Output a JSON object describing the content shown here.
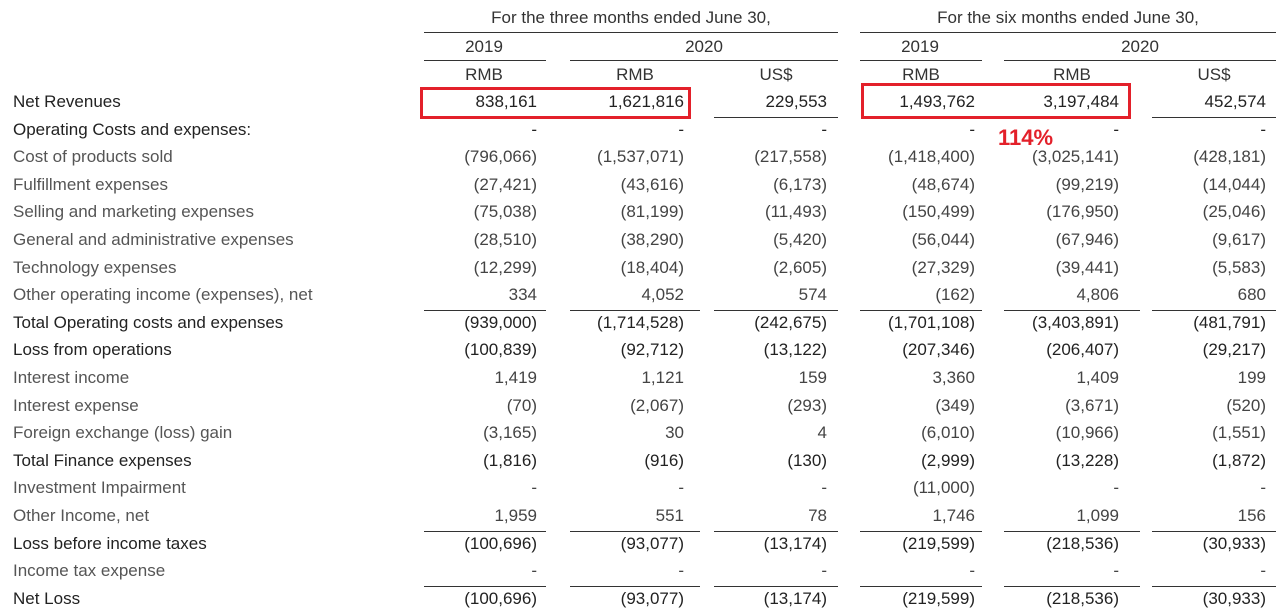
{
  "headers": {
    "three_months": "For the three months ended June 30,",
    "six_months": "For the six months ended June 30,",
    "years": [
      "2019",
      "2020",
      "2019",
      "2020"
    ],
    "currencies": [
      "RMB",
      "RMB",
      "US$",
      "RMB",
      "RMB",
      "US$"
    ]
  },
  "annotation": {
    "growth": "114%"
  },
  "rows": [
    {
      "label": "Net Revenues",
      "bold": true,
      "values": [
        "838,161",
        "1,621,816",
        "229,553",
        "1,493,762",
        "3,197,484",
        "452,574"
      ]
    },
    {
      "label": "Operating Costs and expenses:",
      "bold": true,
      "values": [
        "-",
        "-",
        "-",
        "-",
        "-",
        "-"
      ]
    },
    {
      "label": "Cost of products sold",
      "bold": false,
      "values": [
        "(796,066)",
        "(1,537,071)",
        "(217,558)",
        "(1,418,400)",
        "(3,025,141)",
        "(428,181)"
      ]
    },
    {
      "label": "Fulfillment expenses",
      "bold": false,
      "values": [
        "(27,421)",
        "(43,616)",
        "(6,173)",
        "(48,674)",
        "(99,219)",
        "(14,044)"
      ]
    },
    {
      "label": "Selling and marketing expenses",
      "bold": false,
      "values": [
        "(75,038)",
        "(81,199)",
        "(11,493)",
        "(150,499)",
        "(176,950)",
        "(25,046)"
      ]
    },
    {
      "label": "General and administrative expenses",
      "bold": false,
      "values": [
        "(28,510)",
        "(38,290)",
        "(5,420)",
        "(56,044)",
        "(67,946)",
        "(9,617)"
      ]
    },
    {
      "label": "Technology expenses",
      "bold": false,
      "values": [
        "(12,299)",
        "(18,404)",
        "(2,605)",
        "(27,329)",
        "(39,441)",
        "(5,583)"
      ]
    },
    {
      "label": "Other operating income (expenses), net",
      "bold": false,
      "values": [
        "334",
        "4,052",
        "574",
        "(162)",
        "4,806",
        "680"
      ]
    },
    {
      "label": "Total Operating costs and expenses",
      "bold": true,
      "values": [
        "(939,000)",
        "(1,714,528)",
        "(242,675)",
        "(1,701,108)",
        "(3,403,891)",
        "(481,791)"
      ]
    },
    {
      "label": "Loss from operations",
      "bold": true,
      "values": [
        "(100,839)",
        "(92,712)",
        "(13,122)",
        "(207,346)",
        "(206,407)",
        "(29,217)"
      ]
    },
    {
      "label": "Interest income",
      "bold": false,
      "values": [
        "1,419",
        "1,121",
        "159",
        "3,360",
        "1,409",
        "199"
      ]
    },
    {
      "label": "Interest expense",
      "bold": false,
      "values": [
        "(70)",
        "(2,067)",
        "(293)",
        "(349)",
        "(3,671)",
        "(520)"
      ]
    },
    {
      "label": "Foreign exchange (loss) gain",
      "bold": false,
      "values": [
        "(3,165)",
        "30",
        "4",
        "(6,010)",
        "(10,966)",
        "(1,551)"
      ]
    },
    {
      "label": "Total Finance expenses",
      "bold": true,
      "values": [
        "(1,816)",
        "(916)",
        "(130)",
        "(2,999)",
        "(13,228)",
        "(1,872)"
      ]
    },
    {
      "label": "Investment Impairment",
      "bold": false,
      "values": [
        "-",
        "-",
        "-",
        "(11,000)",
        "-",
        "-"
      ]
    },
    {
      "label": "Other Income, net",
      "bold": false,
      "values": [
        "1,959",
        "551",
        "78",
        "1,746",
        "1,099",
        "156"
      ]
    },
    {
      "label": "Loss before income taxes",
      "bold": true,
      "values": [
        "(100,696)",
        "(93,077)",
        "(13,174)",
        "(219,599)",
        "(218,536)",
        "(30,933)"
      ]
    },
    {
      "label": "Income tax expense",
      "bold": false,
      "values": [
        "-",
        "-",
        "-",
        "-",
        "-",
        "-"
      ]
    },
    {
      "label": "Net Loss",
      "bold": true,
      "values": [
        "(100,696)",
        "(93,077)",
        "(13,174)",
        "(219,599)",
        "(218,536)",
        "(30,933)"
      ]
    }
  ]
}
